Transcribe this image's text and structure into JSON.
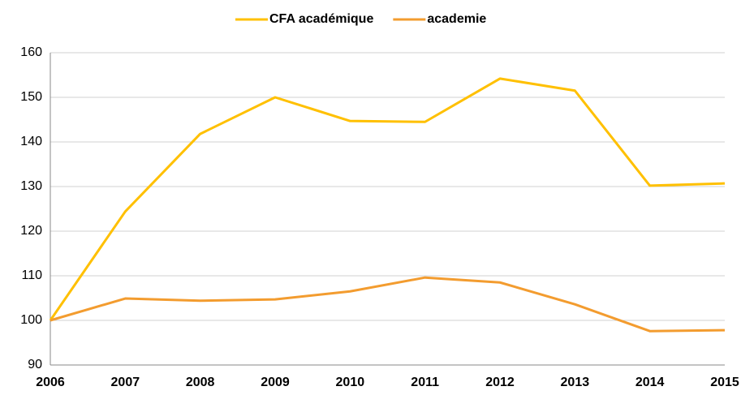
{
  "chart_data": {
    "type": "line",
    "categories": [
      "2006",
      "2007",
      "2008",
      "2009",
      "2010",
      "2011",
      "2012",
      "2013",
      "2014",
      "2015"
    ],
    "series": [
      {
        "name": "CFA académique",
        "color": "#ffc000",
        "values": [
          100,
          124.4,
          141.8,
          150,
          144.7,
          144.5,
          154.2,
          151.5,
          130.2,
          130.7
        ]
      },
      {
        "name": "academie",
        "color": "#f39c2f",
        "values": [
          100,
          104.9,
          104.4,
          104.7,
          106.5,
          109.6,
          108.5,
          103.6,
          97.6,
          97.8
        ]
      }
    ],
    "ylim": [
      90,
      160
    ],
    "yticks": [
      90,
      100,
      110,
      120,
      130,
      140,
      150,
      160
    ],
    "grid": true,
    "legend": "top"
  }
}
